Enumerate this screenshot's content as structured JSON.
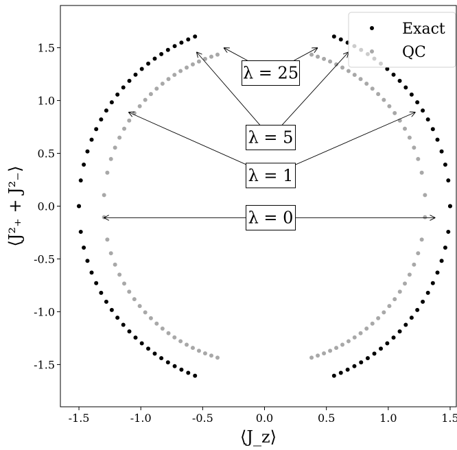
{
  "chart_data": {
    "type": "scatter",
    "title": "",
    "xlabel": "⟨J_z⟩",
    "ylabel": "⟨J²₊ + J²₋⟩",
    "xlim": [
      -1.65,
      1.55
    ],
    "ylim": [
      -1.9,
      1.9
    ],
    "xticks": [
      -1.5,
      -1.0,
      -0.5,
      0.0,
      0.5,
      1.0,
      1.5
    ],
    "xtick_labels": [
      "-1.5",
      "-1.0",
      "-0.5",
      "0.0",
      "0.5",
      "1.0",
      "1.5"
    ],
    "yticks": [
      -1.5,
      -1.0,
      -0.5,
      0.0,
      0.5,
      1.0,
      1.5
    ],
    "ytick_labels": [
      "-1.5",
      "-1.0",
      "-0.5",
      "0.0",
      "0.5",
      "1.0",
      "1.5"
    ],
    "grid": false,
    "legend": {
      "placement": "top-right"
    },
    "series": [
      {
        "name": "Exact",
        "color": "#000000",
        "shape": {
          "type": "two-arcs",
          "a": 1.5,
          "b": 1.732,
          "theta_min_deg": 0,
          "theta_max_deg": 68,
          "note_sides": "mirrored left/right and top/bottom"
        },
        "points_per_quadrant": 22
      },
      {
        "name": "QC",
        "color": "#a8a8a8",
        "shape": {
          "type": "two-arcs",
          "a": 1.3,
          "b": 1.5,
          "theta_min_deg": 4,
          "theta_max_deg": 73
        },
        "points_per_quadrant": 22
      }
    ],
    "annotations": [
      {
        "text": "λ = 0",
        "at": [
          0.05,
          -0.11
        ],
        "arrows_to": [
          [
            -1.3,
            -0.11
          ],
          [
            1.38,
            -0.11
          ]
        ]
      },
      {
        "text": "λ = 1",
        "at": [
          0.05,
          0.29
        ],
        "arrows_to": [
          [
            -1.1,
            0.89
          ],
          [
            1.22,
            0.89
          ]
        ]
      },
      {
        "text": "λ = 5",
        "at": [
          0.05,
          0.65
        ],
        "arrows_to": [
          [
            -0.55,
            1.46
          ],
          [
            0.68,
            1.46
          ]
        ]
      },
      {
        "text": "λ = 25",
        "at": [
          0.05,
          1.26
        ],
        "arrows_to": [
          [
            -0.33,
            1.5
          ],
          [
            0.43,
            1.5
          ]
        ]
      }
    ]
  }
}
